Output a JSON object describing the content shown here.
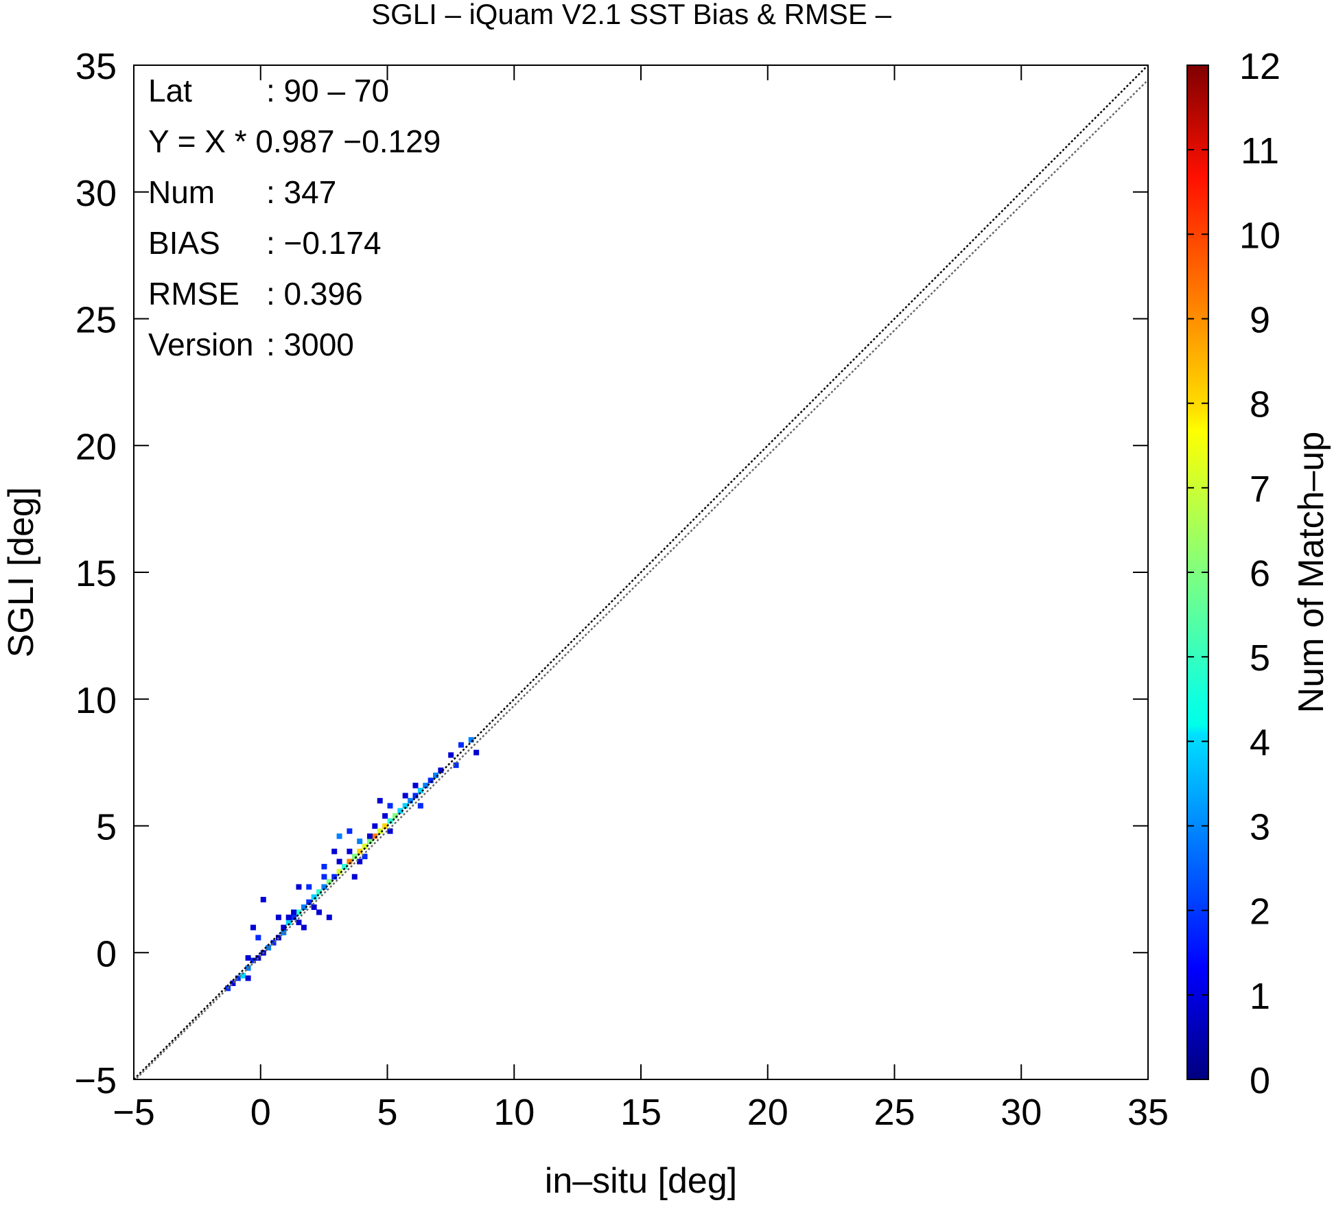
{
  "chart_data": {
    "type": "heatmap",
    "title": "SGLI – iQuam V2.1 SST Bias & RMSE  –",
    "xlabel": "in–situ [deg]",
    "ylabel": "SGLI [deg]",
    "xlim": [
      -5,
      35
    ],
    "ylim": [
      -5,
      35
    ],
    "x_ticks": [
      "−5",
      "0",
      "5",
      "10",
      "15",
      "20",
      "25",
      "30",
      "35"
    ],
    "y_ticks": [
      "−5",
      "0",
      "5",
      "10",
      "15",
      "20",
      "25",
      "30",
      "35"
    ],
    "colorbar": {
      "label": "Num of Match–up",
      "min": 0,
      "max": 12,
      "ticks": [
        "0",
        "1",
        "2",
        "3",
        "4",
        "5",
        "6",
        "7",
        "8",
        "9",
        "10",
        "11",
        "12"
      ],
      "colormap": "jet"
    },
    "stats": [
      {
        "key": "Lat",
        "value": ": 90 – 70"
      },
      {
        "key": "Y = X * 0.987 −0.129",
        "value": ""
      },
      {
        "key": "Num",
        "value": ": 347"
      },
      {
        "key": "BIAS",
        "value": ": −0.174"
      },
      {
        "key": "RMSE",
        "value": ": 0.396"
      },
      {
        "key": "Version",
        "value": ": 3000"
      }
    ],
    "lines": [
      {
        "type": "one-to-one",
        "slope": 1,
        "intercept": 0,
        "style": "dotted",
        "color": "#000000"
      },
      {
        "type": "regression",
        "slope": 0.987,
        "intercept": -0.129,
        "style": "dotted",
        "color": "#666666"
      }
    ],
    "cells": [
      [
        -1.2,
        -1.3,
        1
      ],
      [
        -1.0,
        -1.1,
        2
      ],
      [
        -0.8,
        -1.0,
        4
      ],
      [
        -0.6,
        -0.7,
        3
      ],
      [
        -0.6,
        -1.1,
        1
      ],
      [
        -1.4,
        -1.5,
        2
      ],
      [
        -0.4,
        -0.4,
        2
      ],
      [
        -0.2,
        -0.3,
        1
      ],
      [
        0.0,
        -0.1,
        1
      ],
      [
        0.2,
        0.1,
        3
      ],
      [
        0.4,
        0.3,
        2
      ],
      [
        0.6,
        0.5,
        1
      ],
      [
        0.8,
        0.7,
        3
      ],
      [
        0.8,
        0.9,
        1
      ],
      [
        1.0,
        1.1,
        4
      ],
      [
        1.2,
        1.3,
        2
      ],
      [
        1.4,
        1.5,
        5
      ],
      [
        1.2,
        1.5,
        1
      ],
      [
        1.6,
        1.7,
        3
      ],
      [
        1.8,
        1.9,
        2
      ],
      [
        1.0,
        1.3,
        1
      ],
      [
        1.4,
        1.1,
        1
      ],
      [
        -0.4,
        0.9,
        1
      ],
      [
        0.0,
        2.0,
        1
      ],
      [
        2.0,
        2.1,
        4
      ],
      [
        2.2,
        2.3,
        5
      ],
      [
        2.4,
        2.5,
        3
      ],
      [
        2.6,
        2.7,
        6
      ],
      [
        2.8,
        2.9,
        2
      ],
      [
        2.4,
        2.9,
        2
      ],
      [
        2.0,
        1.7,
        1
      ],
      [
        2.2,
        1.5,
        1
      ],
      [
        2.6,
        1.3,
        1
      ],
      [
        1.8,
        2.5,
        2
      ],
      [
        1.4,
        2.5,
        1
      ],
      [
        2.4,
        3.3,
        2
      ],
      [
        3.0,
        3.1,
        7
      ],
      [
        3.2,
        3.3,
        5
      ],
      [
        3.4,
        3.5,
        9
      ],
      [
        3.0,
        3.5,
        1
      ],
      [
        3.6,
        3.7,
        6
      ],
      [
        3.8,
        3.9,
        8
      ],
      [
        4.0,
        4.1,
        7
      ],
      [
        4.2,
        4.3,
        6
      ],
      [
        4.4,
        4.5,
        9
      ],
      [
        3.8,
        4.3,
        3
      ],
      [
        3.4,
        3.9,
        1
      ],
      [
        4.0,
        3.7,
        2
      ],
      [
        4.4,
        4.9,
        1
      ],
      [
        4.6,
        4.7,
        7
      ],
      [
        4.8,
        4.9,
        8
      ],
      [
        5.0,
        5.1,
        5
      ],
      [
        5.2,
        5.3,
        6
      ],
      [
        5.4,
        5.5,
        4
      ],
      [
        4.2,
        4.5,
        1
      ],
      [
        3.8,
        3.5,
        1
      ],
      [
        5.0,
        4.7,
        1
      ],
      [
        4.8,
        5.3,
        1
      ],
      [
        3.4,
        4.7,
        2
      ],
      [
        3.0,
        4.5,
        3
      ],
      [
        5.6,
        5.7,
        4
      ],
      [
        5.8,
        5.9,
        3
      ],
      [
        6.0,
        6.1,
        2
      ],
      [
        6.2,
        6.3,
        4
      ],
      [
        6.4,
        6.5,
        3
      ],
      [
        5.6,
        6.1,
        1
      ],
      [
        6.0,
        6.5,
        1
      ],
      [
        6.2,
        5.7,
        2
      ],
      [
        6.6,
        6.7,
        2
      ],
      [
        6.8,
        6.9,
        3
      ],
      [
        7.0,
        7.1,
        1
      ],
      [
        7.4,
        7.7,
        1
      ],
      [
        7.6,
        7.3,
        2
      ],
      [
        7.8,
        8.1,
        2
      ],
      [
        8.2,
        8.3,
        3
      ],
      [
        8.4,
        7.8,
        1
      ],
      [
        4.6,
        5.9,
        1
      ],
      [
        5.0,
        5.7,
        2
      ],
      [
        3.6,
        2.9,
        1
      ],
      [
        2.8,
        3.9,
        1
      ],
      [
        1.6,
        0.9,
        1
      ],
      [
        0.6,
        1.3,
        1
      ],
      [
        -0.6,
        -0.3,
        1
      ],
      [
        -0.2,
        0.5,
        2
      ]
    ]
  }
}
